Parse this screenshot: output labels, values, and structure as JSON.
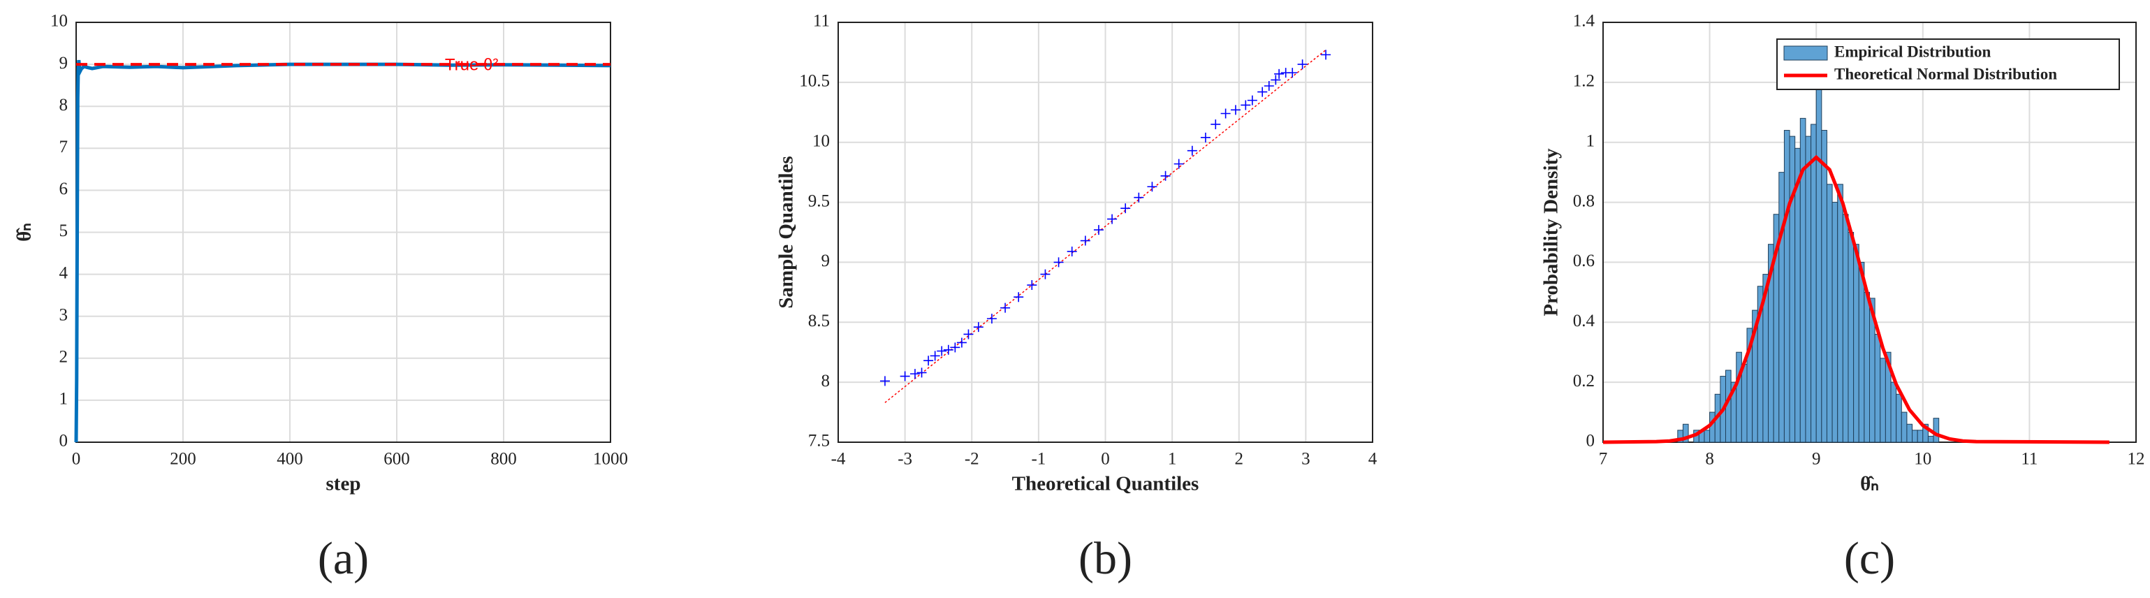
{
  "chart_data": [
    {
      "type": "line",
      "caption": "(a)",
      "xlabel": "step",
      "ylabel": "θ̂ₙ",
      "x": [
        0,
        1,
        2,
        3,
        4,
        5,
        6,
        8,
        10,
        15,
        20,
        30,
        50,
        100,
        150,
        200,
        300,
        400,
        500,
        600,
        700,
        800,
        900,
        1000
      ],
      "values": [
        0,
        1.5,
        5,
        8.2,
        8.9,
        9.1,
        8.95,
        8.85,
        8.9,
        8.95,
        8.93,
        8.9,
        8.95,
        8.93,
        8.95,
        8.92,
        8.97,
        9,
        9,
        9,
        8.98,
        8.99,
        8.98,
        8.97
      ],
      "color": "#0072bd",
      "reference_line": {
        "x": [
          0,
          1000
        ],
        "values": [
          9,
          9
        ],
        "color": "#ff0000"
      },
      "annotation": "True θ²",
      "xlim": [
        0,
        1000
      ],
      "xticks": [
        0,
        200,
        400,
        600,
        800,
        1000
      ],
      "ylim": [
        0,
        10
      ],
      "yticks": [
        0,
        1,
        2,
        3,
        4,
        5,
        6,
        7,
        8,
        9,
        10
      ],
      "grid": true
    },
    {
      "type": "scatter",
      "caption": "(b)",
      "xlabel": "Theoretical Quantiles",
      "ylabel": "Sample Quantiles",
      "x": [
        -3.3,
        -3.0,
        -2.85,
        -2.75,
        -2.65,
        -2.55,
        -2.45,
        -2.35,
        -2.25,
        -2.15,
        -2.05,
        -1.9,
        -1.7,
        -1.5,
        -1.3,
        -1.1,
        -0.9,
        -0.7,
        -0.5,
        -0.3,
        -0.1,
        0.1,
        0.3,
        0.5,
        0.7,
        0.9,
        1.1,
        1.3,
        1.5,
        1.65,
        1.8,
        1.95,
        2.1,
        2.2,
        2.35,
        2.45,
        2.55,
        2.6,
        2.7,
        2.8,
        2.95,
        3.3
      ],
      "values": [
        8.01,
        8.05,
        8.07,
        8.08,
        8.18,
        8.22,
        8.26,
        8.27,
        8.29,
        8.33,
        8.4,
        8.46,
        8.53,
        8.62,
        8.71,
        8.81,
        8.9,
        9.0,
        9.09,
        9.18,
        9.27,
        9.36,
        9.45,
        9.54,
        9.63,
        9.72,
        9.82,
        9.93,
        10.04,
        10.15,
        10.24,
        10.27,
        10.31,
        10.35,
        10.42,
        10.47,
        10.52,
        10.57,
        10.58,
        10.58,
        10.65,
        10.73
      ],
      "color": "#0000ff",
      "reference_line": {
        "x": [
          -3.3,
          3.3
        ],
        "values": [
          7.83,
          10.77
        ],
        "color": "#ff0000"
      },
      "xlim": [
        -4,
        4
      ],
      "xticks": [
        -4,
        -3,
        -2,
        -1,
        0,
        1,
        2,
        3,
        4
      ],
      "ylim": [
        7.5,
        11
      ],
      "yticks": [
        7.5,
        8,
        8.5,
        9,
        9.5,
        10,
        10.5,
        11
      ],
      "grid": true
    },
    {
      "type": "histogram",
      "caption": "(c)",
      "xlabel": "θ̂ₙ",
      "ylabel": "Probability Density",
      "name": "Empirical Distribution",
      "color": "#5fa2d4",
      "bins": [
        7.7,
        7.75,
        7.8,
        7.85,
        7.9,
        7.95,
        8,
        8.05,
        8.1,
        8.15,
        8.2,
        8.25,
        8.3,
        8.35,
        8.4,
        8.45,
        8.5,
        8.55,
        8.6,
        8.65,
        8.7,
        8.75,
        8.8,
        8.85,
        8.9,
        8.95,
        9,
        9.05,
        9.1,
        9.15,
        9.2,
        9.25,
        9.3,
        9.35,
        9.4,
        9.45,
        9.5,
        9.55,
        9.6,
        9.65,
        9.7,
        9.75,
        9.8,
        9.85,
        9.9,
        9.95,
        10,
        10.05,
        10.1,
        10.15,
        10.2
      ],
      "values": [
        0.04,
        0.06,
        0,
        0.04,
        0.04,
        0.04,
        0.1,
        0.16,
        0.22,
        0.24,
        0.2,
        0.3,
        0.26,
        0.38,
        0.44,
        0.52,
        0.56,
        0.66,
        0.76,
        0.9,
        1.04,
        1.02,
        0.98,
        1.08,
        1.02,
        1.06,
        1.18,
        1.04,
        0.86,
        0.8,
        0.86,
        0.76,
        0.7,
        0.66,
        0.6,
        0.5,
        0.48,
        0.36,
        0.28,
        0.3,
        0.2,
        0.16,
        0.1,
        0.06,
        0.04,
        0.04,
        0.06,
        0.02,
        0.08,
        0
      ],
      "curve": {
        "name": "Theoretical Normal Distribution",
        "color": "#ff0000",
        "x": [
          7,
          7.5,
          7.625,
          7.75,
          7.875,
          8,
          8.125,
          8.25,
          8.375,
          8.5,
          8.625,
          8.75,
          8.875,
          9,
          9.125,
          9.25,
          9.375,
          9.5,
          9.625,
          9.75,
          9.875,
          10,
          10.125,
          10.25,
          10.375,
          10.5,
          11.75
        ],
        "values": [
          0,
          0.002,
          0.004,
          0.011,
          0.026,
          0.056,
          0.108,
          0.193,
          0.314,
          0.467,
          0.638,
          0.796,
          0.909,
          0.95,
          0.909,
          0.796,
          0.638,
          0.467,
          0.314,
          0.193,
          0.108,
          0.056,
          0.026,
          0.011,
          0.004,
          0.002,
          0
        ]
      },
      "legend": "top-right",
      "xlim": [
        7,
        12
      ],
      "xticks": [
        7,
        8,
        9,
        10,
        11,
        12
      ],
      "ylim": [
        0,
        1.4
      ],
      "yticks": [
        0,
        0.2,
        0.4,
        0.6,
        0.8,
        1,
        1.2,
        1.4
      ],
      "grid": true
    }
  ]
}
